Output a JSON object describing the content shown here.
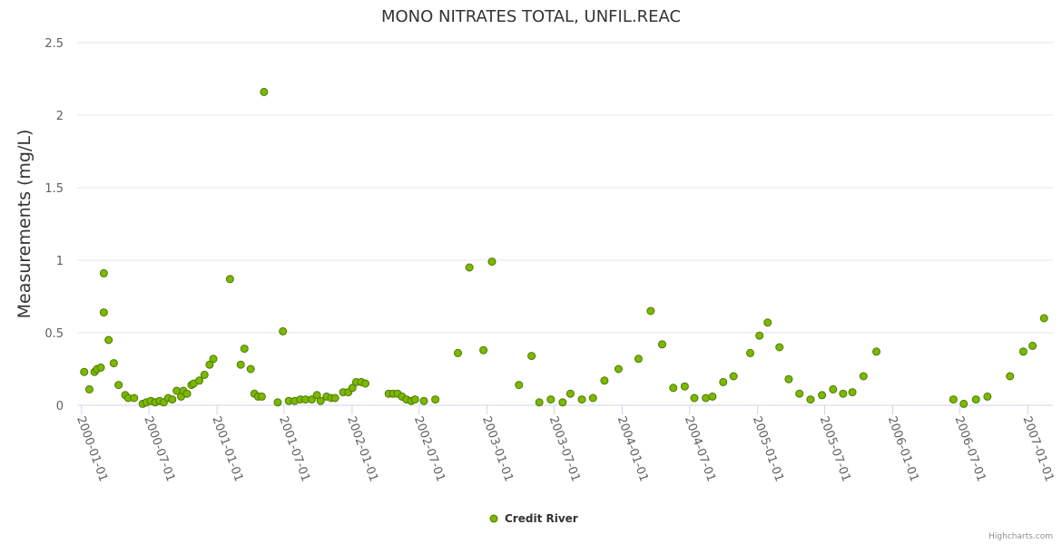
{
  "chart_data": {
    "type": "scatter",
    "title": "MONO NITRATES TOTAL, UNFIL.REAC",
    "xlabel": "",
    "ylabel": "Measurements (mg/L)",
    "ylim": [
      0,
      2.5
    ],
    "y_ticks": [
      "0",
      "0.5",
      "1",
      "1.5",
      "2",
      "2.5"
    ],
    "x_ticks": [
      "2000-01-01",
      "2000-07-01",
      "2001-01-01",
      "2001-07-01",
      "2002-01-01",
      "2002-07-01",
      "2003-01-01",
      "2003-07-01",
      "2004-01-01",
      "2004-07-01",
      "2005-01-01",
      "2005-07-01",
      "2006-01-01",
      "2006-07-01",
      "2007-01-01"
    ],
    "xlim": [
      "1999-12-20",
      "2007-03-10"
    ],
    "legend": "bottom-center",
    "series": [
      {
        "name": "Credit River",
        "color": "#7cb800",
        "points": [
          [
            "2000-01-08",
            0.23
          ],
          [
            "2000-01-22",
            0.11
          ],
          [
            "2000-02-05",
            0.23
          ],
          [
            "2000-02-12",
            0.25
          ],
          [
            "2000-02-22",
            0.26
          ],
          [
            "2000-03-01",
            0.91
          ],
          [
            "2000-03-01",
            0.64
          ],
          [
            "2000-03-14",
            0.45
          ],
          [
            "2000-03-28",
            0.29
          ],
          [
            "2000-04-10",
            0.14
          ],
          [
            "2000-04-28",
            0.07
          ],
          [
            "2000-05-06",
            0.05
          ],
          [
            "2000-05-22",
            0.05
          ],
          [
            "2000-06-14",
            0.01
          ],
          [
            "2000-06-24",
            0.02
          ],
          [
            "2000-07-06",
            0.03
          ],
          [
            "2000-07-18",
            0.02
          ],
          [
            "2000-07-30",
            0.03
          ],
          [
            "2000-08-10",
            0.02
          ],
          [
            "2000-08-22",
            0.05
          ],
          [
            "2000-09-02",
            0.04
          ],
          [
            "2000-09-14",
            0.1
          ],
          [
            "2000-09-26",
            0.06
          ],
          [
            "2000-10-02",
            0.1
          ],
          [
            "2000-10-12",
            0.08
          ],
          [
            "2000-10-24",
            0.14
          ],
          [
            "2000-10-30",
            0.15
          ],
          [
            "2000-11-14",
            0.17
          ],
          [
            "2000-11-28",
            0.21
          ],
          [
            "2000-12-12",
            0.28
          ],
          [
            "2000-12-22",
            0.32
          ],
          [
            "2001-02-05",
            0.87
          ],
          [
            "2001-03-06",
            0.28
          ],
          [
            "2001-03-16",
            0.39
          ],
          [
            "2001-04-02",
            0.25
          ],
          [
            "2001-04-12",
            0.08
          ],
          [
            "2001-04-22",
            0.06
          ],
          [
            "2001-05-02",
            0.06
          ],
          [
            "2001-05-08",
            2.16
          ],
          [
            "2001-06-14",
            0.02
          ],
          [
            "2001-06-28",
            0.51
          ],
          [
            "2001-07-14",
            0.03
          ],
          [
            "2001-07-30",
            0.03
          ],
          [
            "2001-08-14",
            0.04
          ],
          [
            "2001-08-28",
            0.04
          ],
          [
            "2001-09-14",
            0.04
          ],
          [
            "2001-09-28",
            0.07
          ],
          [
            "2001-10-08",
            0.03
          ],
          [
            "2001-10-24",
            0.06
          ],
          [
            "2001-11-06",
            0.05
          ],
          [
            "2001-11-16",
            0.05
          ],
          [
            "2001-12-08",
            0.09
          ],
          [
            "2001-12-22",
            0.09
          ],
          [
            "2002-01-02",
            0.12
          ],
          [
            "2002-01-12",
            0.16
          ],
          [
            "2002-01-26",
            0.16
          ],
          [
            "2002-02-06",
            0.15
          ],
          [
            "2002-04-10",
            0.08
          ],
          [
            "2002-04-22",
            0.08
          ],
          [
            "2002-05-04",
            0.08
          ],
          [
            "2002-05-16",
            0.06
          ],
          [
            "2002-05-28",
            0.04
          ],
          [
            "2002-06-10",
            0.03
          ],
          [
            "2002-06-20",
            0.04
          ],
          [
            "2002-07-14",
            0.03
          ],
          [
            "2002-08-14",
            0.04
          ],
          [
            "2002-10-14",
            0.36
          ],
          [
            "2002-11-14",
            0.95
          ],
          [
            "2002-12-22",
            0.38
          ],
          [
            "2003-01-14",
            0.99
          ],
          [
            "2003-03-28",
            0.14
          ],
          [
            "2003-05-01",
            0.34
          ],
          [
            "2003-05-22",
            0.02
          ],
          [
            "2003-06-22",
            0.04
          ],
          [
            "2003-07-24",
            0.02
          ],
          [
            "2003-08-14",
            0.08
          ],
          [
            "2003-09-14",
            0.04
          ],
          [
            "2003-10-14",
            0.05
          ],
          [
            "2003-11-14",
            0.17
          ],
          [
            "2003-12-22",
            0.25
          ],
          [
            "2004-02-14",
            0.32
          ],
          [
            "2004-03-18",
            0.65
          ],
          [
            "2004-04-18",
            0.42
          ],
          [
            "2004-05-18",
            0.12
          ],
          [
            "2004-06-18",
            0.13
          ],
          [
            "2004-07-14",
            0.05
          ],
          [
            "2004-08-14",
            0.05
          ],
          [
            "2004-09-01",
            0.06
          ],
          [
            "2004-09-30",
            0.16
          ],
          [
            "2004-10-28",
            0.2
          ],
          [
            "2004-12-12",
            0.36
          ],
          [
            "2005-01-06",
            0.48
          ],
          [
            "2005-01-28",
            0.57
          ],
          [
            "2005-03-01",
            0.4
          ],
          [
            "2005-03-26",
            0.18
          ],
          [
            "2005-04-24",
            0.08
          ],
          [
            "2005-05-24",
            0.04
          ],
          [
            "2005-06-24",
            0.07
          ],
          [
            "2005-07-24",
            0.11
          ],
          [
            "2005-08-20",
            0.08
          ],
          [
            "2005-09-14",
            0.09
          ],
          [
            "2005-10-14",
            0.2
          ],
          [
            "2005-11-18",
            0.37
          ],
          [
            "2006-06-14",
            0.04
          ],
          [
            "2006-07-12",
            0.01
          ],
          [
            "2006-08-14",
            0.04
          ],
          [
            "2006-09-14",
            0.06
          ],
          [
            "2006-11-14",
            0.2
          ],
          [
            "2006-12-20",
            0.37
          ],
          [
            "2007-01-14",
            0.41
          ],
          [
            "2007-02-14",
            0.6
          ]
        ]
      }
    ]
  },
  "credits": "Highcharts.com"
}
